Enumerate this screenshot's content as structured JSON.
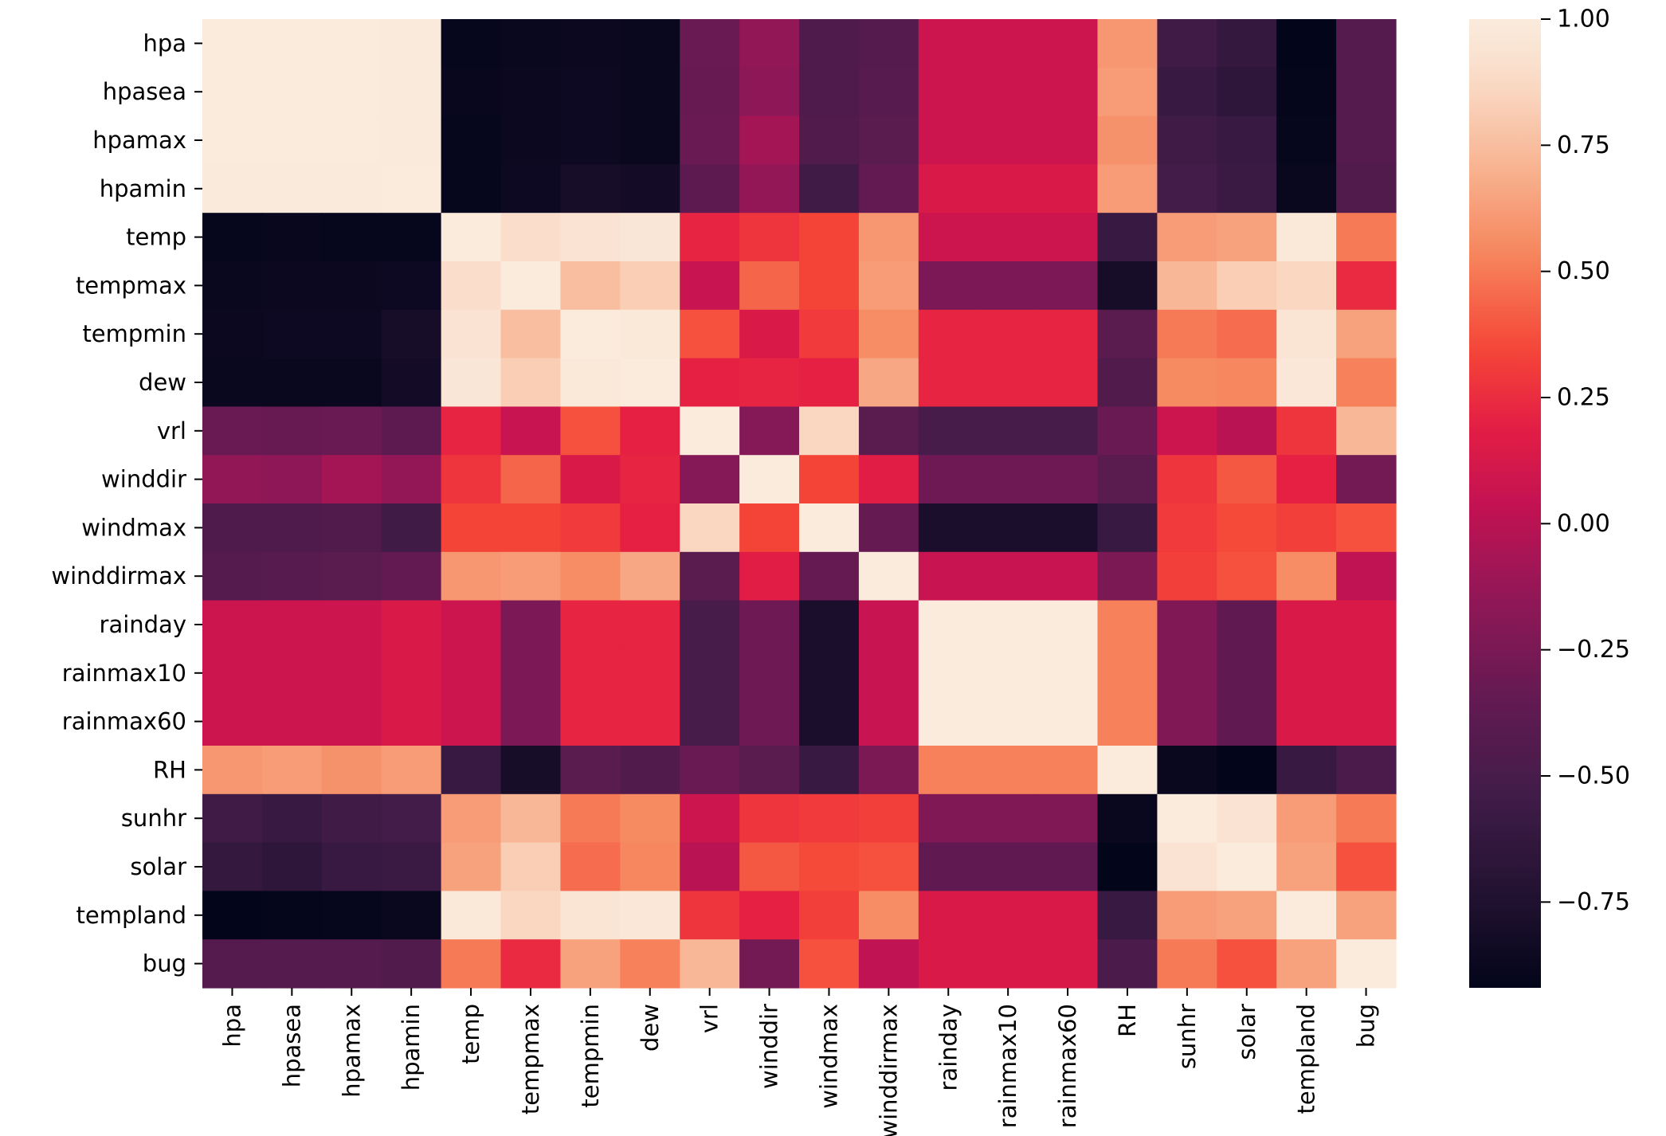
{
  "chart_data": {
    "type": "heatmap",
    "title": "",
    "xlabel": "",
    "ylabel": "",
    "colormap": "rocket",
    "vmin": -0.92,
    "vmax": 1.0,
    "row_labels": [
      "hpa",
      "hpasea",
      "hpamax",
      "hpamin",
      "temp",
      "tempmax",
      "tempmin",
      "dew",
      "vrl",
      "winddir",
      "windmax",
      "winddirmax",
      "rainday",
      "rainmax10",
      "rainmax60",
      "RH",
      "sunhr",
      "solar",
      "templand",
      "bug"
    ],
    "col_labels": [
      "hpa",
      "hpasea",
      "hpamax",
      "hpamin",
      "temp",
      "tempmax",
      "tempmin",
      "dew",
      "vrl",
      "winddir",
      "windmax",
      "winddirmax",
      "rainday",
      "rainmax10",
      "rainmax60",
      "RH",
      "sunhr",
      "solar",
      "templand",
      "bug"
    ],
    "values": [
      [
        1.0,
        1.0,
        1.0,
        0.99,
        -0.9,
        -0.88,
        -0.87,
        -0.88,
        -0.32,
        -0.15,
        -0.46,
        -0.42,
        0.08,
        0.08,
        0.08,
        0.6,
        -0.55,
        -0.62,
        -0.92,
        -0.42
      ],
      [
        1.0,
        1.0,
        1.0,
        0.99,
        -0.89,
        -0.87,
        -0.86,
        -0.88,
        -0.33,
        -0.16,
        -0.46,
        -0.41,
        0.08,
        0.08,
        0.08,
        0.62,
        -0.6,
        -0.66,
        -0.91,
        -0.42
      ],
      [
        1.0,
        1.0,
        1.0,
        0.99,
        -0.9,
        -0.87,
        -0.86,
        -0.88,
        -0.32,
        -0.08,
        -0.45,
        -0.4,
        0.08,
        0.08,
        0.08,
        0.58,
        -0.55,
        -0.6,
        -0.9,
        -0.42
      ],
      [
        0.99,
        0.99,
        0.99,
        1.0,
        -0.9,
        -0.86,
        -0.8,
        -0.82,
        -0.38,
        -0.14,
        -0.55,
        -0.35,
        0.14,
        0.14,
        0.14,
        0.62,
        -0.52,
        -0.58,
        -0.88,
        -0.45
      ],
      [
        -0.9,
        -0.89,
        -0.9,
        -0.9,
        1.0,
        0.9,
        0.94,
        0.96,
        0.22,
        0.28,
        0.34,
        0.6,
        0.08,
        0.08,
        0.08,
        -0.6,
        0.62,
        0.64,
        0.98,
        0.5
      ],
      [
        -0.88,
        -0.87,
        -0.87,
        -0.86,
        0.9,
        1.0,
        0.75,
        0.82,
        0.06,
        0.44,
        0.34,
        0.62,
        -0.24,
        -0.24,
        -0.24,
        -0.8,
        0.72,
        0.82,
        0.86,
        0.24
      ],
      [
        -0.87,
        -0.86,
        -0.86,
        -0.8,
        0.94,
        0.75,
        1.0,
        0.98,
        0.38,
        0.14,
        0.3,
        0.56,
        0.22,
        0.22,
        0.22,
        -0.4,
        0.5,
        0.46,
        0.95,
        0.64
      ],
      [
        -0.88,
        -0.88,
        -0.88,
        -0.82,
        0.96,
        0.82,
        0.98,
        1.0,
        0.2,
        0.22,
        0.2,
        0.66,
        0.22,
        0.22,
        0.22,
        -0.45,
        0.55,
        0.54,
        0.97,
        0.52
      ],
      [
        -0.32,
        -0.33,
        -0.32,
        -0.38,
        0.22,
        0.06,
        0.38,
        0.2,
        1.0,
        -0.2,
        0.86,
        -0.4,
        -0.5,
        -0.5,
        -0.5,
        -0.32,
        0.08,
        0.0,
        0.28,
        0.72
      ],
      [
        -0.15,
        -0.16,
        -0.08,
        -0.14,
        0.28,
        0.44,
        0.14,
        0.22,
        -0.2,
        1.0,
        0.34,
        0.18,
        -0.3,
        -0.3,
        -0.3,
        -0.4,
        0.28,
        0.4,
        0.2,
        -0.28
      ],
      [
        -0.46,
        -0.46,
        -0.45,
        -0.55,
        0.34,
        0.34,
        0.3,
        0.2,
        0.86,
        0.34,
        1.0,
        -0.34,
        -0.78,
        -0.78,
        -0.78,
        -0.6,
        0.3,
        0.36,
        0.32,
        0.38
      ],
      [
        -0.42,
        -0.41,
        -0.4,
        -0.35,
        0.6,
        0.62,
        0.56,
        0.66,
        -0.4,
        0.18,
        -0.34,
        1.0,
        0.06,
        0.06,
        0.06,
        -0.25,
        0.32,
        0.38,
        0.56,
        0.02
      ],
      [
        0.08,
        0.08,
        0.08,
        0.14,
        0.08,
        -0.24,
        0.22,
        0.22,
        -0.5,
        -0.3,
        -0.78,
        0.06,
        1.0,
        1.0,
        1.0,
        0.52,
        -0.22,
        -0.36,
        0.14,
        0.14
      ],
      [
        0.08,
        0.08,
        0.08,
        0.14,
        0.08,
        -0.24,
        0.22,
        0.22,
        -0.5,
        -0.3,
        -0.78,
        0.06,
        1.0,
        1.0,
        1.0,
        0.52,
        -0.22,
        -0.36,
        0.14,
        0.14
      ],
      [
        0.08,
        0.08,
        0.08,
        0.14,
        0.08,
        -0.24,
        0.22,
        0.22,
        -0.5,
        -0.3,
        -0.78,
        0.06,
        1.0,
        1.0,
        1.0,
        0.52,
        -0.22,
        -0.36,
        0.14,
        0.14
      ],
      [
        0.6,
        0.62,
        0.58,
        0.62,
        -0.6,
        -0.8,
        -0.4,
        -0.45,
        -0.32,
        -0.4,
        -0.6,
        -0.25,
        0.52,
        0.52,
        0.52,
        1.0,
        -0.88,
        -0.92,
        -0.6,
        -0.48
      ],
      [
        -0.55,
        -0.6,
        -0.55,
        -0.52,
        0.62,
        0.72,
        0.5,
        0.55,
        0.08,
        0.28,
        0.3,
        0.32,
        -0.22,
        -0.22,
        -0.22,
        -0.88,
        1.0,
        0.94,
        0.62,
        0.5
      ],
      [
        -0.62,
        -0.66,
        -0.6,
        -0.58,
        0.64,
        0.82,
        0.46,
        0.54,
        0.0,
        0.4,
        0.36,
        0.38,
        -0.36,
        -0.36,
        -0.36,
        -0.92,
        0.94,
        1.0,
        0.64,
        0.38
      ],
      [
        -0.92,
        -0.91,
        -0.9,
        -0.88,
        0.98,
        0.86,
        0.95,
        0.97,
        0.28,
        0.2,
        0.32,
        0.56,
        0.14,
        0.14,
        0.14,
        -0.6,
        0.62,
        0.64,
        1.0,
        0.64
      ],
      [
        -0.42,
        -0.42,
        -0.42,
        -0.45,
        0.5,
        0.24,
        0.64,
        0.52,
        0.72,
        -0.28,
        0.38,
        0.02,
        0.14,
        0.14,
        0.14,
        -0.48,
        0.5,
        0.38,
        0.64,
        1.0
      ]
    ],
    "colorbar": {
      "ticks": [
        1.0,
        0.75,
        0.5,
        0.25,
        0.0,
        -0.25,
        -0.5,
        -0.75
      ],
      "tick_labels": [
        "1.00",
        "0.75",
        "0.50",
        "0.25",
        "0.00",
        "−0.25",
        "−0.50",
        "−0.75"
      ]
    }
  }
}
